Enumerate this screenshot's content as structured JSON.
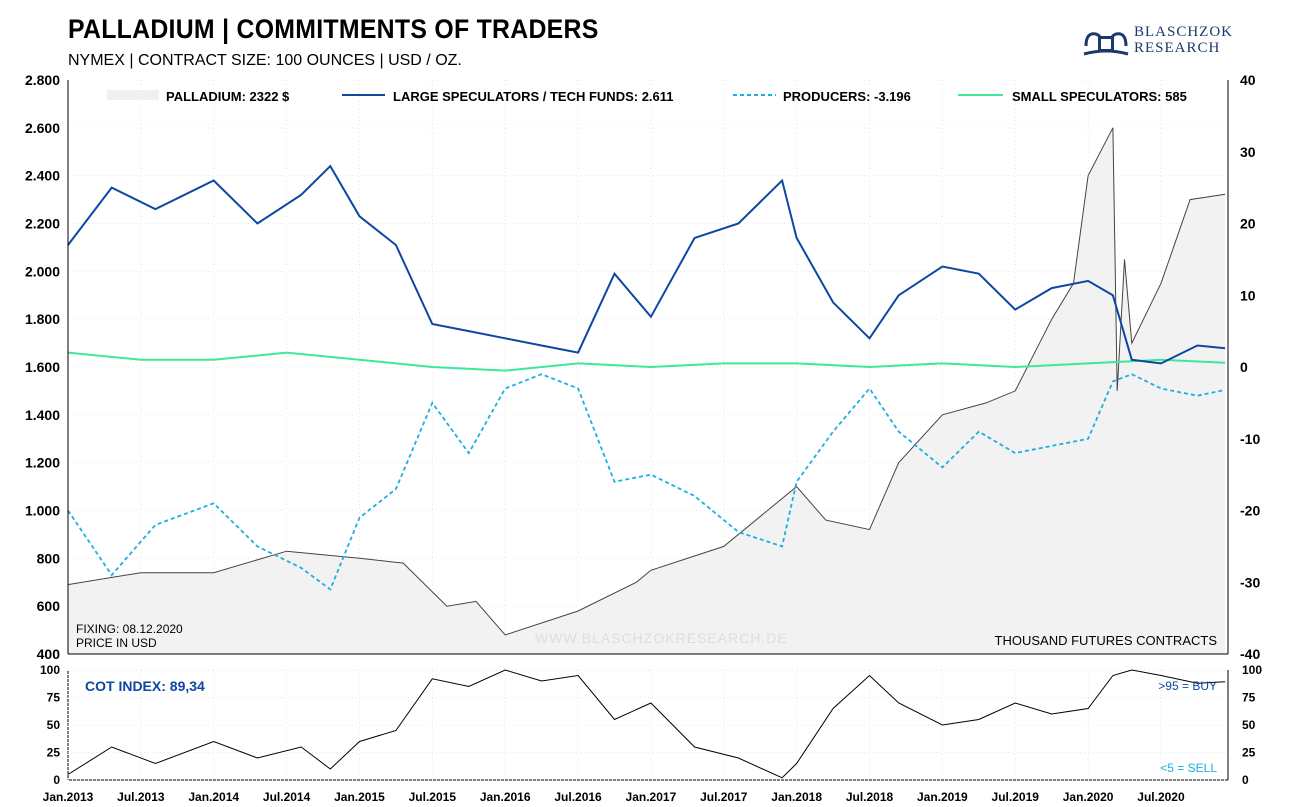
{
  "header": {
    "title": "PALLADIUM | COMMITMENTS OF TRADERS",
    "subtitle": "NYMEX | CONTRACT SIZE: 100 OUNCES | USD / OZ.",
    "logo_line1": "BLASCHZOK",
    "logo_line2": "RESEARCH"
  },
  "legend": {
    "price": "PALLADIUM: 2322 $",
    "large": "LARGE SPECULATORS / TECH FUNDS: 2.611",
    "producers": "PRODUCERS: -3.196",
    "small": "SMALL SPECULATORS: 585"
  },
  "notes": {
    "fixing": "FIXING: 08.12.2020",
    "price_unit": "PRICE IN USD",
    "watermark": "WWW.BLASCHZOKRESEARCH.DE",
    "contracts_unit": "THOUSAND  FUTURES  CONTRACTS",
    "cot_index": "COT INDEX: 89,34",
    "buy": ">95 = BUY",
    "sell": "<5 = SELL"
  },
  "colors": {
    "price_fill": "#f2f2f2",
    "price_line": "#444444",
    "large": "#0d47a1",
    "producers": "#1ab0e0",
    "small": "#3ee89a",
    "cot": "#000000",
    "cot_label": "#0d47a1",
    "sell_label": "#1ab0e0"
  },
  "chart_data": [
    {
      "type": "line",
      "title": "PALLADIUM | COMMITMENTS OF TRADERS",
      "x_ticks": [
        "Jan.2013",
        "Jul.2013",
        "Jan.2014",
        "Jul.2014",
        "Jan.2015",
        "Jul.2015",
        "Jan.2016",
        "Jul.2016",
        "Jan.2017",
        "Jul.2017",
        "Jan.2018",
        "Jul.2018",
        "Jan.2019",
        "Jul.2019",
        "Jan.2020",
        "Jul.2020"
      ],
      "x_range": [
        "2013-01",
        "2020-12"
      ],
      "y_left": {
        "ticks": [
          "2.800",
          "2.600",
          "2.400",
          "2.200",
          "2.000",
          "1.800",
          "1.600",
          "1.400",
          "1.200",
          "1.000",
          "800",
          "600",
          "400"
        ],
        "range": [
          400,
          2800
        ]
      },
      "y_right": {
        "ticks": [
          "40",
          "30",
          "20",
          "10",
          "0",
          "-10",
          "-20",
          "-30",
          "-40"
        ],
        "range": [
          -40,
          40
        ]
      },
      "series": [
        {
          "name": "PALLADIUM: 2322 $",
          "axis": "left",
          "style": "area",
          "x": [
            2013.0,
            2013.5,
            2014.0,
            2014.5,
            2015.0,
            2015.3,
            2015.6,
            2015.8,
            2016.0,
            2016.5,
            2016.9,
            2017.0,
            2017.5,
            2017.9,
            2018.0,
            2018.2,
            2018.5,
            2018.7,
            2019.0,
            2019.3,
            2019.5,
            2019.75,
            2019.9,
            2020.0,
            2020.17,
            2020.2,
            2020.25,
            2020.3,
            2020.5,
            2020.7,
            2020.94
          ],
          "values": [
            690,
            740,
            740,
            830,
            800,
            780,
            600,
            620,
            480,
            580,
            700,
            750,
            850,
            1050,
            1100,
            960,
            920,
            1200,
            1400,
            1450,
            1500,
            1800,
            1950,
            2400,
            2600,
            1500,
            2050,
            1700,
            1950,
            2300,
            2322
          ]
        },
        {
          "name": "LARGE SPECULATORS / TECH FUNDS: 2.611",
          "axis": "right",
          "x": [
            2013.0,
            2013.3,
            2013.6,
            2014.0,
            2014.3,
            2014.6,
            2014.8,
            2015.0,
            2015.25,
            2015.5,
            2015.75,
            2016.0,
            2016.25,
            2016.5,
            2016.75,
            2017.0,
            2017.3,
            2017.6,
            2017.9,
            2018.0,
            2018.25,
            2018.5,
            2018.7,
            2019.0,
            2019.25,
            2019.5,
            2019.75,
            2020.0,
            2020.17,
            2020.3,
            2020.5,
            2020.75,
            2020.94
          ],
          "values": [
            17,
            25,
            22,
            26,
            20,
            24,
            28,
            21,
            17,
            6,
            5,
            4,
            3,
            2,
            13,
            7,
            18,
            20,
            26,
            18,
            9,
            4,
            10,
            14,
            13,
            8,
            11,
            12,
            10,
            1,
            0.5,
            3,
            2.611
          ]
        },
        {
          "name": "PRODUCERS: -3.196",
          "axis": "right",
          "style": "dashed",
          "x": [
            2013.0,
            2013.3,
            2013.6,
            2014.0,
            2014.3,
            2014.6,
            2014.8,
            2015.0,
            2015.25,
            2015.5,
            2015.75,
            2016.0,
            2016.25,
            2016.5,
            2016.75,
            2017.0,
            2017.3,
            2017.6,
            2017.9,
            2018.0,
            2018.25,
            2018.5,
            2018.7,
            2019.0,
            2019.25,
            2019.5,
            2019.75,
            2020.0,
            2020.17,
            2020.3,
            2020.5,
            2020.75,
            2020.94
          ],
          "values": [
            -20,
            -29,
            -22,
            -19,
            -25,
            -28,
            -31,
            -21,
            -17,
            -5,
            -12,
            -3,
            -1,
            -3,
            -16,
            -15,
            -18,
            -23,
            -25,
            -16,
            -9,
            -3,
            -9,
            -14,
            -9,
            -12,
            -11,
            -10,
            -2,
            -1,
            -3,
            -4,
            -3.196
          ]
        },
        {
          "name": "SMALL SPECULATORS: 585",
          "axis": "right",
          "x": [
            2013.0,
            2013.5,
            2014.0,
            2014.5,
            2015.0,
            2015.5,
            2016.0,
            2016.5,
            2017.0,
            2017.5,
            2018.0,
            2018.5,
            2019.0,
            2019.5,
            2020.0,
            2020.5,
            2020.94
          ],
          "values": [
            2,
            1,
            1,
            2,
            1,
            0,
            -0.5,
            0.5,
            0,
            0.5,
            0.5,
            0,
            0.5,
            0,
            0.5,
            1,
            0.585
          ]
        }
      ]
    },
    {
      "type": "line",
      "title": "COT INDEX: 89,34",
      "x_ticks": [
        "Jan.2013",
        "Jul.2013",
        "Jan.2014",
        "Jul.2014",
        "Jan.2015",
        "Jul.2015",
        "Jan.2016",
        "Jul.2016",
        "Jan.2017",
        "Jul.2017",
        "Jan.2018",
        "Jul.2018",
        "Jan.2019",
        "Jul.2019",
        "Jan.2020",
        "Jul.2020"
      ],
      "y_ticks": [
        "100",
        "75",
        "50",
        "25",
        "0"
      ],
      "ylim": [
        0,
        100
      ],
      "series": [
        {
          "name": "COT INDEX",
          "x": [
            2013.0,
            2013.3,
            2013.6,
            2014.0,
            2014.3,
            2014.6,
            2014.8,
            2015.0,
            2015.25,
            2015.5,
            2015.75,
            2016.0,
            2016.25,
            2016.5,
            2016.75,
            2017.0,
            2017.3,
            2017.6,
            2017.9,
            2018.0,
            2018.25,
            2018.5,
            2018.7,
            2019.0,
            2019.25,
            2019.5,
            2019.75,
            2020.0,
            2020.17,
            2020.3,
            2020.5,
            2020.75,
            2020.94
          ],
          "values": [
            5,
            30,
            15,
            35,
            20,
            30,
            10,
            35,
            45,
            92,
            85,
            100,
            90,
            95,
            55,
            70,
            30,
            20,
            2,
            15,
            65,
            95,
            70,
            50,
            55,
            70,
            60,
            65,
            95,
            100,
            95,
            88,
            89.34
          ]
        }
      ]
    }
  ]
}
